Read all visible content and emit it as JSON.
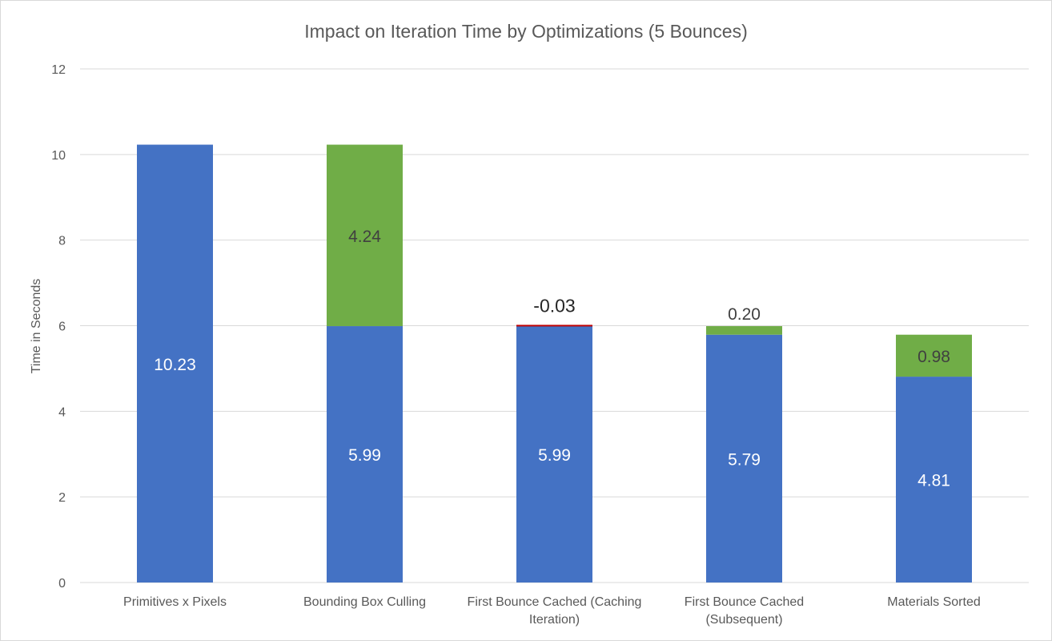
{
  "chart_data": {
    "type": "bar",
    "stacked": true,
    "title": "Impact on Iteration Time by Optimizations (5 Bounces)",
    "xlabel": "",
    "ylabel": "Time in Seconds",
    "ylim": [
      0,
      12
    ],
    "yticks": [
      0,
      2,
      4,
      6,
      8,
      10,
      12
    ],
    "grid": true,
    "legend": "none",
    "categories": [
      "Primitives x Pixels",
      "Bounding Box Culling",
      "First Bounce Cached (Caching Iteration)",
      "First Bounce Cached (Subsequent)",
      "Materials Sorted"
    ],
    "series": [
      {
        "values": [
          10.23,
          5.99,
          5.99,
          5.79,
          4.81
        ],
        "labels": [
          "10.23",
          "5.99",
          "5.99",
          "5.79",
          "4.81"
        ],
        "color": "#4472c4"
      },
      {
        "values": [
          0,
          4.24,
          -0.03,
          0.2,
          0.98
        ],
        "labels": [
          "",
          "4.24",
          "-0.03",
          "0.20",
          "0.98"
        ],
        "color": "#70ad47",
        "negative_color": "#c00000"
      }
    ],
    "colors": {
      "grid": "#d9d9d9",
      "axis_text": "#595959",
      "title": "#595959"
    }
  }
}
